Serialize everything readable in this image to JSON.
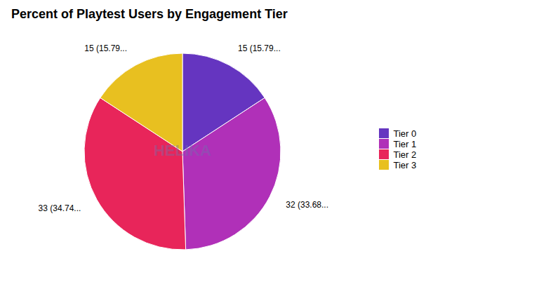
{
  "chart_data": {
    "type": "pie",
    "title": "Percent of Playtest Users by Engagement Tier",
    "categories": [
      "Tier 0",
      "Tier 1",
      "Tier 2",
      "Tier 3"
    ],
    "values": [
      15,
      32,
      33,
      15
    ],
    "colors": [
      "#6535c0",
      "#b030b8",
      "#e8255a",
      "#e8c020"
    ],
    "data_labels": true,
    "value_labels": [
      "15 (15.79...",
      "32 (33.68...",
      "33 (34.74...",
      "15 (15.79..."
    ],
    "annotations": [
      "HELIKA"
    ],
    "legend": "right"
  }
}
